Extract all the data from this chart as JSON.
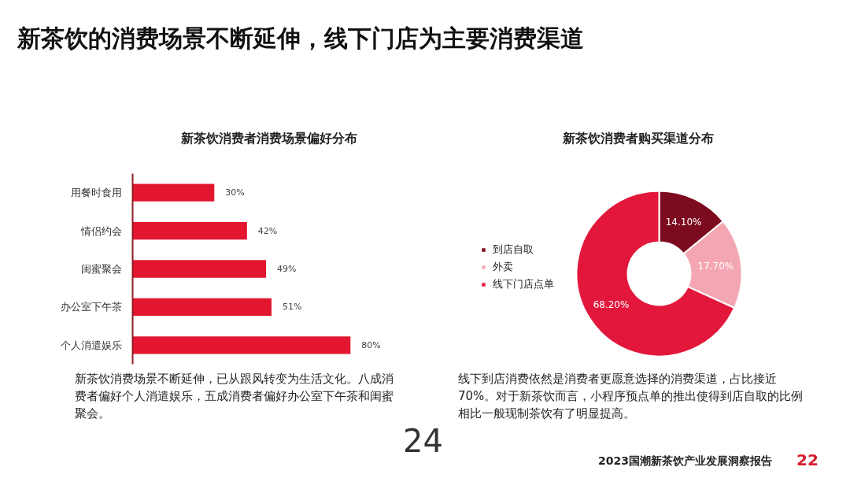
{
  "chart_data": [
    {
      "type": "other",
      "title": "新茶饮的消费场景不断延伸，线下门店为主要消费渠道",
      "annotations": [
        "24",
        "2023国潮新茶饮产业发展洞察报告",
        "22"
      ]
    },
    {
      "type": "bar",
      "orientation": "horizontal",
      "title": "新茶饮消费者消费场景偏好分布",
      "categories": [
        "用餐时食用",
        "情侣约会",
        "闺蜜聚会",
        "办公室下午茶",
        "个人消遣娱乐"
      ],
      "values": [
        30,
        42,
        49,
        51,
        80
      ],
      "color": "#e2162e",
      "value_labels": [
        "30%",
        "42%",
        "49%",
        "51%",
        "80%"
      ],
      "tick_labels": "y",
      "annotations": [
        "新茶饮消费场景不断延伸，已从跟风转变为生活文化。八成消费者偏好个人消遣娱乐，五成消费者偏好办公室下午茶和闺蜜聚会。"
      ]
    },
    {
      "type": "donut",
      "title": "新茶饮消费者购买渠道分布",
      "categories": [
        "到店自取",
        "外卖",
        "线下门店点单"
      ],
      "values": [
        14.1,
        17.7,
        68.2
      ],
      "colors": [
        "#7d0b20",
        "#f4a7b3",
        "#e3173b"
      ],
      "value_labels": [
        "14.10%",
        "17.70%",
        "68.20%"
      ],
      "legend": "left",
      "annotations": [
        "线下到店消费依然是消费者更愿意选择的消费渠道，占比接近70%。对于新茶饮而言，小程序预点单的推出使得到店自取的比例相比一般现制茶饮有了明显提高。"
      ]
    }
  ]
}
